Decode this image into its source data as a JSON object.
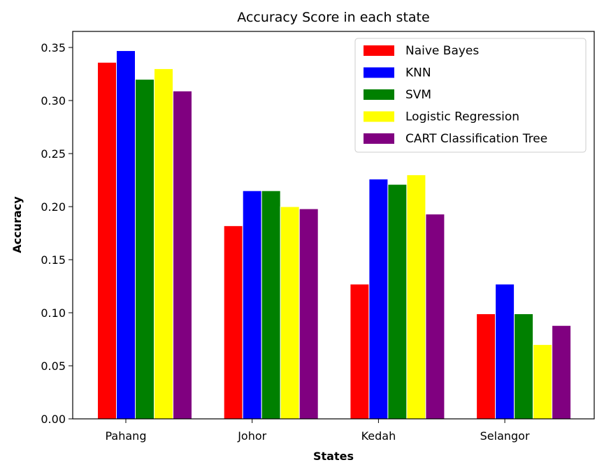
{
  "chart_data": {
    "type": "bar",
    "title": "Accuracy Score in each state",
    "xlabel": "States",
    "ylabel": "Accuracy",
    "categories": [
      "Pahang",
      "Johor",
      "Kedah",
      "Selangor"
    ],
    "ylim": [
      0,
      0.35
    ],
    "yticks": [
      "0.00",
      "0.05",
      "0.10",
      "0.15",
      "0.20",
      "0.25",
      "0.30",
      "0.35"
    ],
    "legend_position": "top-right",
    "grid": false,
    "series": [
      {
        "name": "Naive Bayes",
        "color": "#ff0000",
        "values": [
          0.336,
          0.182,
          0.127,
          0.099
        ]
      },
      {
        "name": "KNN",
        "color": "#0000ff",
        "values": [
          0.347,
          0.215,
          0.226,
          0.127
        ]
      },
      {
        "name": "SVM",
        "color": "#008000",
        "values": [
          0.32,
          0.215,
          0.221,
          0.099
        ]
      },
      {
        "name": "Logistic Regression",
        "color": "#ffff00",
        "values": [
          0.33,
          0.2,
          0.23,
          0.07
        ]
      },
      {
        "name": "CART Classification Tree",
        "color": "#800080",
        "values": [
          0.309,
          0.198,
          0.193,
          0.088
        ]
      }
    ]
  }
}
